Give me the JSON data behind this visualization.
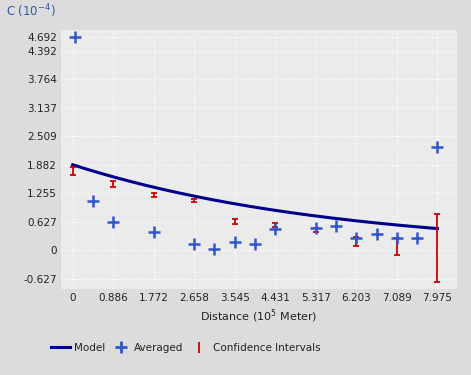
{
  "background_color": "#dcdcdc",
  "plot_bg_color": "#ebebeb",
  "grid_color": "#ffffff",
  "model_color": "#00008B",
  "averaged_color": "#3355cc",
  "ci_color": "#cc0000",
  "yticks": [
    -0.627,
    0,
    0.627,
    1.255,
    1.882,
    2.509,
    3.137,
    3.764,
    4.392,
    4.692
  ],
  "xticks": [
    0,
    0.886,
    1.772,
    2.658,
    3.545,
    4.431,
    5.317,
    6.203,
    7.089,
    7.975
  ],
  "ylim": [
    -0.85,
    4.85
  ],
  "xlim": [
    -0.25,
    8.4
  ],
  "averaged_x": [
    0.05,
    0.44,
    0.89,
    1.77,
    2.66,
    3.1,
    3.55,
    3.99,
    4.43,
    5.32,
    5.76,
    6.2,
    6.65,
    7.09,
    7.53,
    7.975
  ],
  "averaged_y": [
    4.692,
    1.08,
    0.62,
    0.4,
    0.14,
    0.02,
    0.19,
    0.14,
    0.46,
    0.48,
    0.53,
    0.27,
    0.35,
    0.27,
    0.27,
    2.28
  ],
  "ci_x": [
    0.0,
    0.886,
    1.772,
    2.658,
    3.545,
    4.431,
    5.317,
    6.203,
    7.089,
    7.975
  ],
  "ci_y": [
    1.75,
    1.46,
    1.215,
    1.095,
    0.64,
    0.545,
    0.45,
    0.195,
    0.075,
    0.055
  ],
  "ci_lo": [
    0.085,
    0.07,
    0.05,
    0.04,
    0.055,
    0.045,
    0.04,
    0.1,
    0.19,
    0.75
  ],
  "ci_hi": [
    0.085,
    0.07,
    0.05,
    0.04,
    0.055,
    0.045,
    0.04,
    0.1,
    0.19,
    0.75
  ],
  "model_nugget": 1.882,
  "model_range": 5.8,
  "xlabel": "Distance (10$^5$ Meter)",
  "ylabel_text": "C (10$^{-4}$)"
}
